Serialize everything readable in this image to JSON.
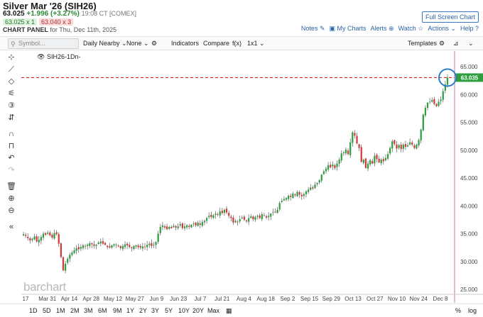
{
  "header": {
    "title": "Silver Mar '26 (SIH26)",
    "last": "63.025",
    "change": "+1.996 (+3.27%)",
    "time": "19:08 CT [COMEX]",
    "bid": "63.025 x 1",
    "ask": "63.040 x 3",
    "panel_label": "CHART PANEL",
    "panel_date": "for Thu, Dec 11th, 2025",
    "full_screen": "Full Screen Chart",
    "links": {
      "notes": "Notes",
      "mycharts": "My Charts",
      "alerts": "Alerts",
      "watch": "Watch",
      "actions": "Actions",
      "help": "Help"
    }
  },
  "toolbar": {
    "symbol_placeholder": "Symbol...",
    "daily_nearby": "Daily Nearby",
    "none": "None",
    "indicators": "Indicators",
    "compare": "Compare",
    "fx": "f(x)",
    "layout": "1x1",
    "templates": "Templates"
  },
  "legend": {
    "symbol": "SIH26",
    "period": "-1Dn-"
  },
  "watermark": "barchart",
  "price_marker": "63.035",
  "yaxis": [
    "65.000",
    "60.000",
    "55.000",
    "50.000",
    "45.000",
    "40.000",
    "35.000",
    "30.000",
    "25.000"
  ],
  "xaxis": [
    "17",
    "Mar 31",
    "Apr 14",
    "Apr 28",
    "May 12",
    "May 27",
    "Jun 9",
    "Jun 23",
    "Jul 7",
    "Jul 21",
    "Aug 4",
    "Aug 18",
    "Sep 2",
    "Sep 15",
    "Sep 29",
    "Oct 13",
    "Oct 27",
    "Nov 10",
    "Nov 24",
    "Dec 8"
  ],
  "ranges": [
    "1D",
    "5D",
    "1M",
    "2M",
    "3M",
    "6M",
    "9M",
    "1Y",
    "2Y",
    "3Y",
    "5Y",
    "10Y",
    "20Y",
    "Max"
  ],
  "bottom_right": {
    "pct": "%",
    "log": "log"
  },
  "colors": {
    "up": "#2e9e3e",
    "down": "#d13a3a",
    "marker": "#e02020",
    "circle": "#2b7fc7",
    "axis_line": "#c77ab8"
  },
  "chart_data": {
    "type": "candlestick",
    "ylim": [
      25,
      66
    ],
    "closes": [
      34.9,
      34.6,
      34.2,
      33.8,
      34.1,
      34.5,
      33.6,
      33.9,
      34.4,
      35.0,
      34.8,
      35.2,
      34.7,
      34.3,
      35.1,
      34.9,
      33.2,
      30.8,
      28.4,
      29.6,
      30.5,
      31.2,
      31.6,
      32.0,
      32.4,
      32.2,
      32.6,
      32.9,
      32.7,
      33.0,
      33.3,
      33.1,
      32.8,
      33.0,
      33.4,
      33.6,
      33.2,
      33.0,
      32.6,
      32.5,
      32.9,
      33.1,
      33.0,
      32.7,
      32.4,
      32.8,
      33.1,
      32.9,
      32.6,
      32.4,
      32.8,
      32.9,
      32.6,
      32.5,
      32.7,
      32.6,
      33.0,
      33.2,
      32.8,
      33.0,
      33.5,
      35.0,
      36.2,
      36.5,
      36.1,
      35.8,
      36.2,
      36.0,
      36.4,
      36.1,
      36.3,
      36.7,
      36.0,
      36.3,
      36.5,
      36.2,
      36.6,
      36.8,
      36.5,
      37.0,
      36.6,
      37.1,
      37.3,
      37.8,
      38.2,
      38.0,
      38.3,
      38.6,
      38.4,
      39.0,
      38.7,
      39.3,
      38.8,
      38.2,
      37.8,
      37.0,
      37.3,
      37.1,
      37.6,
      37.9,
      37.5,
      37.2,
      37.8,
      38.1,
      37.6,
      38.0,
      38.2,
      37.8,
      38.5,
      38.3,
      37.9,
      38.2,
      38.6,
      38.9,
      38.8,
      39.3,
      40.5,
      40.9,
      41.2,
      41.4,
      41.8,
      41.6,
      42.2,
      41.9,
      42.5,
      42.0,
      41.7,
      42.1,
      42.6,
      42.9,
      43.3,
      43.1,
      43.8,
      44.1,
      44.6,
      45.6,
      46.2,
      46.7,
      47.3,
      46.9,
      47.4,
      46.8,
      47.6,
      48.3,
      49.4,
      49.6,
      50.1,
      49.3,
      51.4,
      53.2,
      52.6,
      51.2,
      50.4,
      47.9,
      48.3,
      46.8,
      47.6,
      48.2,
      47.6,
      49.0,
      48.4,
      47.8,
      48.3,
      48.0,
      48.6,
      49.3,
      50.4,
      51.6,
      51.1,
      50.3,
      50.9,
      50.2,
      51.0,
      50.6,
      50.9,
      51.4,
      51.0,
      50.4,
      51.0,
      51.8,
      53.7,
      56.4,
      57.6,
      58.5,
      58.7,
      59.0,
      58.3,
      57.9,
      58.7,
      59.1,
      60.6,
      61.8,
      63.02
    ]
  }
}
